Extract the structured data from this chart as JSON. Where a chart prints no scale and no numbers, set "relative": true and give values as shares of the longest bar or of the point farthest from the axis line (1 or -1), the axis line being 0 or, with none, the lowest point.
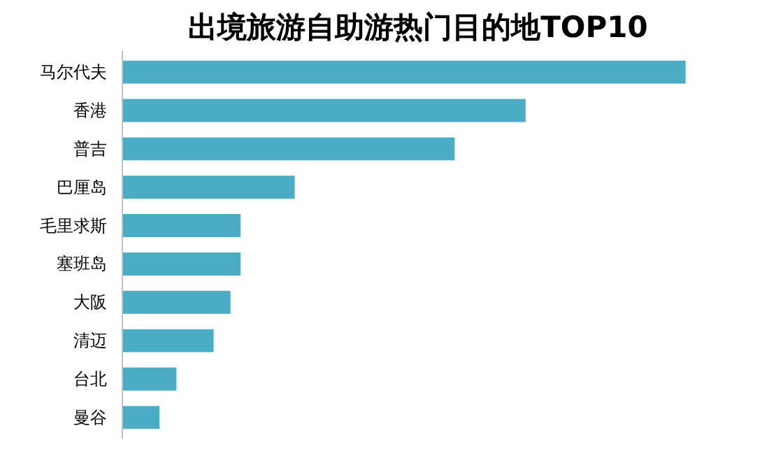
{
  "chart_data": {
    "type": "bar",
    "orientation": "horizontal",
    "relative": true,
    "title": "出境旅游自助游热门目的地TOP10",
    "categories": [
      "马尔代夫",
      "香港",
      "普吉",
      "巴厘岛",
      "毛里求斯",
      "塞班岛",
      "大阪",
      "清迈",
      "台北",
      "曼谷"
    ],
    "values": [
      1,
      0.716,
      0.59,
      0.306,
      0.21,
      0.21,
      0.192,
      0.162,
      0.096,
      0.066
    ],
    "color": "#4bacc6"
  }
}
